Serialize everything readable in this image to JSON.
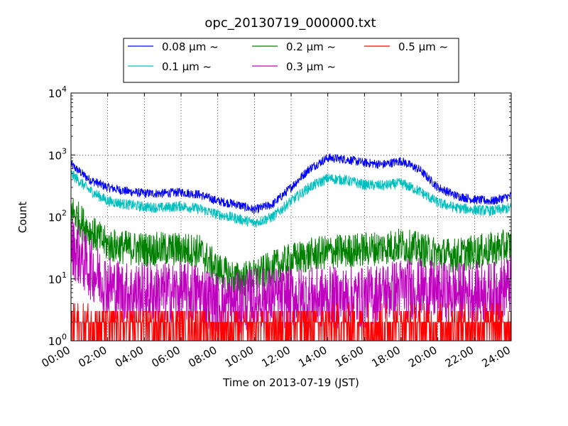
{
  "chart_data": {
    "type": "line",
    "title": "opc_20130719_000000.txt",
    "xlabel": "Time on 2013-07-19 (JST)",
    "ylabel": "Count",
    "yscale": "log",
    "ylim": [
      1,
      10000
    ],
    "xlim": [
      "00:00",
      "24:00"
    ],
    "grid": true,
    "legend_position": "top-center",
    "x_ticks": [
      "00:00",
      "02:00",
      "04:00",
      "06:00",
      "08:00",
      "10:00",
      "12:00",
      "14:00",
      "16:00",
      "18:00",
      "20:00",
      "22:00",
      "24:00"
    ],
    "y_ticks": [
      {
        "value": 1,
        "base": "10",
        "exp": "0"
      },
      {
        "value": 10,
        "base": "10",
        "exp": "1"
      },
      {
        "value": 100,
        "base": "10",
        "exp": "2"
      },
      {
        "value": 1000,
        "base": "10",
        "exp": "3"
      },
      {
        "value": 10000,
        "base": "10",
        "exp": "4"
      }
    ],
    "x_hours": [
      0,
      1,
      2,
      3,
      4,
      5,
      6,
      7,
      8,
      9,
      10,
      11,
      12,
      13,
      14,
      15,
      16,
      17,
      18,
      19,
      20,
      21,
      22,
      23,
      24
    ],
    "series": [
      {
        "name": "0.08 μm ~",
        "color": "#0000ff",
        "noise": 0.06,
        "values": [
          700,
          400,
          300,
          260,
          240,
          240,
          250,
          230,
          180,
          160,
          130,
          160,
          300,
          600,
          900,
          850,
          750,
          700,
          800,
          580,
          300,
          220,
          190,
          180,
          220
        ]
      },
      {
        "name": "0.1 μm ~",
        "color": "#00bfbf",
        "noise": 0.07,
        "values": [
          500,
          270,
          180,
          160,
          145,
          140,
          150,
          135,
          110,
          95,
          80,
          100,
          180,
          300,
          420,
          390,
          330,
          320,
          350,
          260,
          170,
          140,
          130,
          125,
          140
        ]
      },
      {
        "name": "0.2 μm ~",
        "color": "#008000",
        "noise": 0.14,
        "values": [
          130,
          60,
          35,
          32,
          30,
          30,
          30,
          28,
          14,
          10,
          11,
          15,
          20,
          24,
          27,
          28,
          30,
          32,
          35,
          30,
          25,
          24,
          27,
          30,
          35
        ]
      },
      {
        "name": "0.3 μm ~",
        "color": "#bf00bf",
        "noise": 0.25,
        "values": [
          35,
          15,
          8,
          6,
          6,
          6,
          6,
          6,
          4,
          4,
          5,
          5,
          5,
          5,
          5,
          5,
          5,
          6,
          7,
          7,
          6,
          6,
          6,
          6,
          8
        ]
      },
      {
        "name": "0.5 μm ~",
        "color": "#ff0000",
        "noise": 0.2,
        "values": [
          2,
          1.8,
          1.5,
          1.5,
          1.5,
          1.5,
          1.5,
          1.5,
          1.4,
          1.4,
          1.4,
          1.5,
          1.5,
          1.5,
          1.6,
          1.6,
          1.6,
          1.6,
          1.7,
          1.7,
          1.6,
          1.6,
          1.6,
          1.6,
          1.8
        ]
      }
    ]
  }
}
